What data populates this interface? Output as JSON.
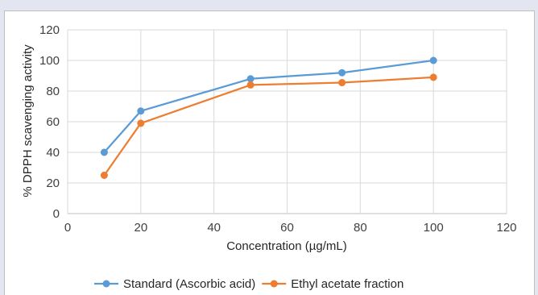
{
  "chart_data": {
    "type": "line",
    "title": "",
    "xlabel": "Concentration (µg/mL)",
    "ylabel": "% DPPH scavenging activity",
    "xlim": [
      0,
      120
    ],
    "ylim": [
      0,
      120
    ],
    "xticks": [
      0,
      20,
      40,
      60,
      80,
      100,
      120
    ],
    "yticks": [
      0,
      20,
      40,
      60,
      80,
      100,
      120
    ],
    "grid": true,
    "legend_position": "bottom",
    "series": [
      {
        "name": "Standard (Ascorbic acid)",
        "color": "#5b9bd5",
        "x": [
          10,
          20,
          50,
          75,
          100
        ],
        "y": [
          40,
          67,
          88,
          92,
          100
        ]
      },
      {
        "name": "Ethyl acetate fraction",
        "color": "#ed7d31",
        "x": [
          10,
          20,
          50,
          75,
          100
        ],
        "y": [
          25,
          59,
          84,
          85.5,
          89
        ]
      }
    ]
  }
}
